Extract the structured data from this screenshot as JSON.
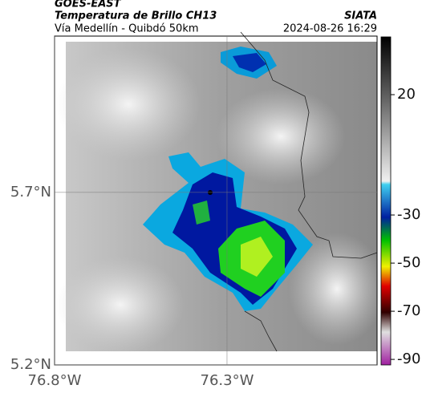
{
  "header": {
    "source": "GOES-EAST",
    "title": "Temperatura de Brillo CH13",
    "agency": "SIATA",
    "route": "Vía Medellín - Quibdó 50km",
    "datetime": "2024-08-26 16:29"
  },
  "map": {
    "latlim": [
      5.2,
      6.153
    ],
    "lonlim": [
      -76.8,
      -75.865
    ],
    "lat_ticks": [
      {
        "value": 5.2,
        "label": "5.2°N"
      },
      {
        "value": 5.7,
        "label": "5.7°N"
      }
    ],
    "lon_ticks": [
      {
        "value": -76.8,
        "label": "76.8°W"
      },
      {
        "value": -76.3,
        "label": "76.3°W"
      }
    ]
  },
  "colorbar": {
    "lim": [
      -92.3,
      44
    ],
    "ticks": [
      20,
      -30,
      -50,
      -70,
      -90
    ]
  }
}
